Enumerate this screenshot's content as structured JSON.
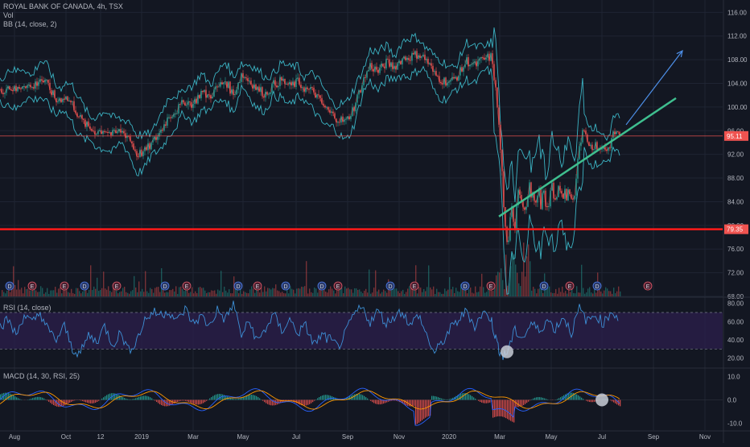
{
  "header": {
    "title": "ROYAL BANK OF CANADA, 4h, TSX",
    "vol_label": "Vol",
    "bb_label": "BB (14, close, 2)",
    "rsi_label": "RSI (14, close)",
    "macd_label": "MACD (14, 30, RSI, 25)"
  },
  "colors": {
    "background": "#131722",
    "grid": "#1f2433",
    "up": "#26a69a",
    "down": "#ef5350",
    "bb": "#3bb3c3",
    "horizontal_line": "#ff1a1a",
    "trend_line": "#3fbf8f",
    "arrow": "#4d8fe8",
    "rsi_line": "#3d8fd6",
    "rsi_band": "#2a1e4a",
    "macd_line": "#2962ff",
    "signal_line": "#ff9800",
    "price_label_95": "#ef5350",
    "price_label_79": "#ef5350"
  },
  "chart_data": [
    {
      "type": "candlestick",
      "name": "main",
      "y_ticks": [
        "116.00",
        "112.00",
        "108.00",
        "104.00",
        "100.00",
        "96.00",
        "92.00",
        "88.00",
        "84.00",
        "80.00",
        "76.00",
        "72.00",
        "68.00"
      ],
      "ylim": [
        68,
        117
      ],
      "x_ticks": [
        "Aug",
        "Oct",
        "12",
        "2019",
        "Mar",
        "May",
        "Jul",
        "Sep",
        "Nov",
        "2020",
        "Mar",
        "May",
        "Jul",
        "Sep",
        "Nov"
      ],
      "last_price": "95.11",
      "horizontal_level": "79.35",
      "price_series": [
        [
          0,
          102.5
        ],
        [
          10,
          103.5
        ],
        [
          20,
          102.8
        ],
        [
          30,
          104.0
        ],
        [
          40,
          103.2
        ],
        [
          50,
          104.8
        ],
        [
          60,
          103.6
        ],
        [
          70,
          101.0
        ],
        [
          80,
          101.8
        ],
        [
          90,
          100.5
        ],
        [
          100,
          98.0
        ],
        [
          110,
          96.5
        ],
        [
          120,
          95.8
        ],
        [
          130,
          96.2
        ],
        [
          140,
          95.3
        ],
        [
          150,
          96.0
        ],
        [
          160,
          95.0
        ],
        [
          170,
          92.0
        ],
        [
          180,
          92.5
        ],
        [
          190,
          94.0
        ],
        [
          200,
          96.0
        ],
        [
          210,
          98.5
        ],
        [
          220,
          99.5
        ],
        [
          230,
          101.0
        ],
        [
          240,
          100.5
        ],
        [
          250,
          102.5
        ],
        [
          260,
          101.8
        ],
        [
          270,
          103.2
        ],
        [
          280,
          104.5
        ],
        [
          290,
          102.0
        ],
        [
          300,
          105.5
        ],
        [
          310,
          104.5
        ],
        [
          320,
          103.0
        ],
        [
          330,
          102.2
        ],
        [
          340,
          103.8
        ],
        [
          350,
          104.5
        ],
        [
          360,
          103.5
        ],
        [
          370,
          104.2
        ],
        [
          380,
          103.0
        ],
        [
          390,
          102.6
        ],
        [
          400,
          100.5
        ],
        [
          410,
          99.0
        ],
        [
          420,
          98.0
        ],
        [
          430,
          97.5
        ],
        [
          440,
          100.0
        ],
        [
          450,
          104.0
        ],
        [
          460,
          107.0
        ],
        [
          470,
          106.0
        ],
        [
          480,
          107.5
        ],
        [
          490,
          106.8
        ],
        [
          500,
          108.2
        ],
        [
          510,
          108.5
        ],
        [
          520,
          109.0
        ],
        [
          530,
          108.0
        ],
        [
          540,
          105.5
        ],
        [
          550,
          104.5
        ],
        [
          560,
          104.2
        ],
        [
          570,
          105.5
        ],
        [
          580,
          107.8
        ],
        [
          590,
          107.0
        ],
        [
          600,
          108.0
        ],
        [
          610,
          108.5
        ],
        [
          615,
          104.0
        ],
        [
          620,
          96.0
        ],
        [
          625,
          85.0
        ],
        [
          630,
          78.0
        ],
        [
          635,
          82.0
        ],
        [
          640,
          80.5
        ],
        [
          645,
          84.5
        ],
        [
          650,
          82.0
        ],
        [
          655,
          86.0
        ],
        [
          660,
          84.5
        ],
        [
          665,
          85.5
        ],
        [
          670,
          85.0
        ],
        [
          680,
          84.5
        ],
        [
          690,
          85.5
        ],
        [
          700,
          85.2
        ],
        [
          705,
          84.0
        ],
        [
          710,
          83.0
        ],
        [
          715,
          88.0
        ],
        [
          720,
          94.0
        ],
        [
          725,
          96.0
        ],
        [
          730,
          94.5
        ],
        [
          735,
          93.0
        ],
        [
          740,
          94.0
        ],
        [
          745,
          92.5
        ],
        [
          750,
          93.5
        ],
        [
          755,
          92.5
        ],
        [
          760,
          94.5
        ],
        [
          765,
          96.0
        ],
        [
          770,
          95.1
        ]
      ],
      "trend_line": {
        "from": [
          "Mar 2020",
          81.5
        ],
        "to": [
          "Aug 2020",
          101.5
        ]
      },
      "projection_arrow": {
        "from": [
          "Jul 2020",
          97.0
        ],
        "to": [
          "Sep 2020",
          109.5
        ]
      }
    },
    {
      "type": "line",
      "name": "RSI (14, close)",
      "y_ticks": [
        "80.00",
        "60.00",
        "40.00",
        "20.00"
      ],
      "ylim": [
        10,
        85
      ],
      "band": [
        30,
        70
      ],
      "series": [
        [
          0,
          55
        ],
        [
          10,
          62
        ],
        [
          20,
          45
        ],
        [
          30,
          68
        ],
        [
          40,
          58
        ],
        [
          50,
          70
        ],
        [
          60,
          50
        ],
        [
          70,
          40
        ],
        [
          80,
          55
        ],
        [
          90,
          30
        ],
        [
          100,
          25
        ],
        [
          110,
          45
        ],
        [
          120,
          38
        ],
        [
          130,
          55
        ],
        [
          140,
          35
        ],
        [
          150,
          48
        ],
        [
          160,
          28
        ],
        [
          170,
          40
        ],
        [
          180,
          62
        ],
        [
          190,
          70
        ],
        [
          200,
          68
        ],
        [
          210,
          72
        ],
        [
          220,
          60
        ],
        [
          230,
          74
        ],
        [
          240,
          58
        ],
        [
          250,
          66
        ],
        [
          260,
          55
        ],
        [
          270,
          73
        ],
        [
          280,
          62
        ],
        [
          290,
          80
        ],
        [
          300,
          45
        ],
        [
          310,
          60
        ],
        [
          320,
          38
        ],
        [
          330,
          52
        ],
        [
          340,
          68
        ],
        [
          350,
          50
        ],
        [
          360,
          62
        ],
        [
          370,
          48
        ],
        [
          380,
          55
        ],
        [
          390,
          35
        ],
        [
          400,
          45
        ],
        [
          410,
          40
        ],
        [
          420,
          32
        ],
        [
          430,
          48
        ],
        [
          440,
          68
        ],
        [
          450,
          75
        ],
        [
          460,
          60
        ],
        [
          470,
          72
        ],
        [
          480,
          58
        ],
        [
          490,
          66
        ],
        [
          500,
          72
        ],
        [
          510,
          55
        ],
        [
          520,
          68
        ],
        [
          530,
          45
        ],
        [
          540,
          25
        ],
        [
          550,
          38
        ],
        [
          560,
          52
        ],
        [
          570,
          62
        ],
        [
          580,
          72
        ],
        [
          590,
          55
        ],
        [
          600,
          70
        ],
        [
          610,
          64
        ],
        [
          615,
          45
        ],
        [
          620,
          30
        ],
        [
          625,
          22
        ],
        [
          630,
          26
        ],
        [
          640,
          50
        ],
        [
          650,
          42
        ],
        [
          660,
          58
        ],
        [
          670,
          50
        ],
        [
          680,
          62
        ],
        [
          690,
          52
        ],
        [
          700,
          66
        ],
        [
          710,
          48
        ],
        [
          720,
          74
        ],
        [
          730,
          60
        ],
        [
          740,
          68
        ],
        [
          750,
          58
        ],
        [
          760,
          72
        ],
        [
          770,
          62
        ]
      ],
      "highlight_marker": [
        "Mar 2020",
        27
      ]
    },
    {
      "type": "line",
      "name": "MACD (14, 30, RSI, 25)",
      "y_ticks": [
        "10.0",
        "0.0",
        "-10.0"
      ],
      "ylim": [
        -13,
        13
      ],
      "highlight_marker": [
        "Jul 2020",
        0.0
      ]
    }
  ]
}
